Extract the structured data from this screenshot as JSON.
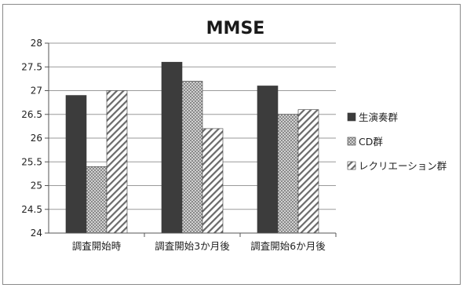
{
  "chart_data": {
    "type": "bar",
    "title": "MMSE",
    "categories": [
      "調査開始時",
      "調査開始3か月後",
      "調査開始6か月後"
    ],
    "series": [
      {
        "name": "生演奏群",
        "values": [
          26.9,
          27.6,
          27.1
        ],
        "fill": "#3c3c3c"
      },
      {
        "name": "CD群",
        "values": [
          25.4,
          27.2,
          26.5
        ],
        "fill": "pattern-dots"
      },
      {
        "name": "レクリエーション群",
        "values": [
          27.0,
          26.2,
          26.6
        ],
        "fill": "pattern-diagonal"
      }
    ],
    "ylim": [
      24,
      28
    ],
    "yticks": [
      "24",
      "24.5",
      "25",
      "25.5",
      "26",
      "26.5",
      "27",
      "27.5",
      "28"
    ],
    "grid": true,
    "legend": "right"
  }
}
